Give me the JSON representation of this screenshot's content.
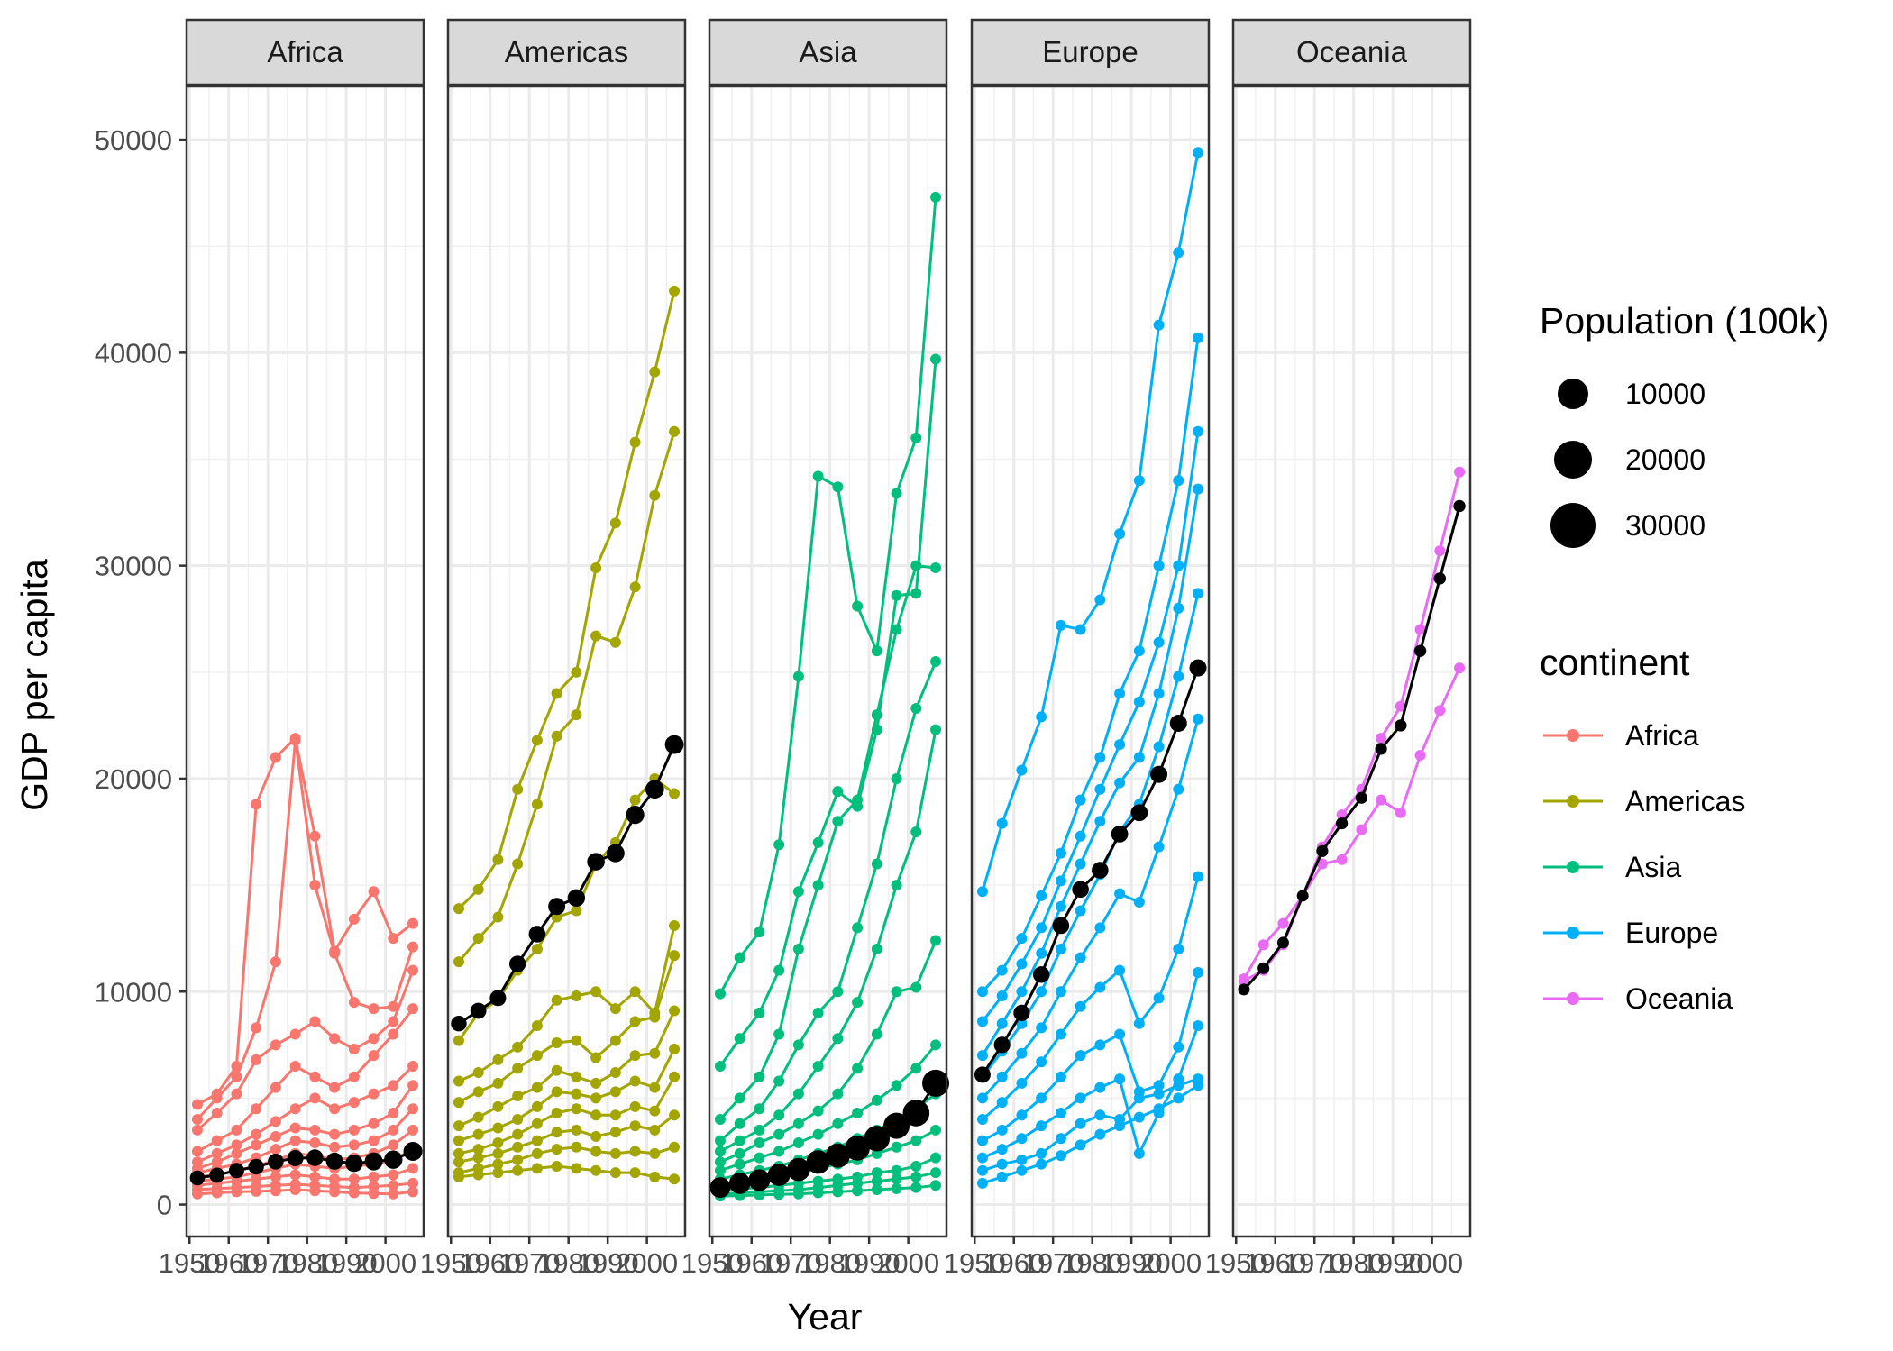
{
  "chart_data": {
    "type": "line",
    "title": "",
    "xlabel": "Year",
    "ylabel": "GDP per capita",
    "ylim": [
      -1500,
      52500
    ],
    "yticks": [
      0,
      10000,
      20000,
      30000,
      40000,
      50000
    ],
    "xlim": [
      1949.25,
      2009.75
    ],
    "xticks": [
      1950,
      1960,
      1970,
      1980,
      1990,
      2000
    ],
    "years": [
      1952,
      1957,
      1962,
      1967,
      1972,
      1977,
      1982,
      1987,
      1992,
      1997,
      2002,
      2007
    ],
    "grid": true,
    "facets": [
      "Africa",
      "Americas",
      "Asia",
      "Europe",
      "Oceania"
    ],
    "colors": {
      "Africa": "#F8766D",
      "Americas": "#A3A500",
      "Asia": "#00BF7D",
      "Europe": "#00B0F6",
      "Oceania": "#E76BF3",
      "mean": "#000000"
    },
    "legend": {
      "placement": "right",
      "size_title": "Population (100k)",
      "size_entries": [
        "10000",
        "20000",
        "30000"
      ],
      "color_title": "continent",
      "color_entries": [
        "Africa",
        "Americas",
        "Asia",
        "Europe",
        "Oceania"
      ]
    },
    "series": [
      {
        "continent": "Africa",
        "values": [
          4700,
          5200,
          6500,
          18800,
          21000,
          21900,
          17300,
          11900,
          13400,
          14700,
          12500,
          13200
        ]
      },
      {
        "continent": "Africa",
        "values": [
          4000,
          5000,
          6000,
          8300,
          11400,
          21800,
          15000,
          11800,
          9500,
          9200,
          9300,
          12100
        ]
      },
      {
        "continent": "Africa",
        "values": [
          3500,
          4300,
          5200,
          6800,
          7500,
          8000,
          8600,
          7800,
          7300,
          7800,
          8600,
          11000
        ]
      },
      {
        "continent": "Africa",
        "values": [
          2500,
          3000,
          3500,
          4500,
          5500,
          6500,
          6000,
          5500,
          6000,
          7000,
          8000,
          9200
        ]
      },
      {
        "continent": "Africa",
        "values": [
          2000,
          2400,
          2800,
          3300,
          3900,
          4500,
          5000,
          4500,
          4800,
          5200,
          5600,
          6500
        ]
      },
      {
        "continent": "Africa",
        "values": [
          1700,
          2000,
          2400,
          2800,
          3200,
          3600,
          3500,
          3300,
          3500,
          3800,
          4300,
          5600
        ]
      },
      {
        "continent": "Africa",
        "values": [
          1500,
          1700,
          1900,
          2200,
          2600,
          3000,
          2900,
          2700,
          2800,
          3000,
          3500,
          4500
        ]
      },
      {
        "continent": "Africa",
        "values": [
          1300,
          1400,
          1600,
          1800,
          2100,
          2400,
          2300,
          2100,
          2200,
          2400,
          2800,
          3500
        ]
      },
      {
        "continent": "Africa",
        "values": [
          1100,
          1200,
          1300,
          1500,
          1700,
          1900,
          1800,
          1700,
          1800,
          1900,
          2100,
          2600
        ]
      },
      {
        "continent": "Africa",
        "values": [
          900,
          1000,
          1100,
          1200,
          1300,
          1400,
          1300,
          1200,
          1200,
          1300,
          1400,
          1700
        ]
      },
      {
        "continent": "Africa",
        "values": [
          700,
          750,
          800,
          850,
          900,
          950,
          900,
          850,
          800,
          850,
          900,
          1000
        ]
      },
      {
        "continent": "Africa",
        "values": [
          500,
          550,
          600,
          620,
          650,
          700,
          650,
          600,
          550,
          520,
          500,
          600
        ]
      },
      {
        "continent": "Americas",
        "values": [
          13900,
          14800,
          16200,
          19500,
          21800,
          24000,
          25000,
          29900,
          32000,
          35800,
          39100,
          42900
        ]
      },
      {
        "continent": "Americas",
        "values": [
          11400,
          12500,
          13500,
          16000,
          18800,
          22000,
          23000,
          26700,
          26400,
          29000,
          33300,
          36300
        ]
      },
      {
        "continent": "Americas",
        "values": [
          7700,
          9000,
          9600,
          11000,
          12000,
          13500,
          13800,
          16000,
          17000,
          19000,
          20000,
          19300
        ]
      },
      {
        "continent": "Americas",
        "values": [
          5800,
          6200,
          6800,
          7400,
          8400,
          9600,
          9800,
          10000,
          9200,
          10000,
          9000,
          13100
        ]
      },
      {
        "continent": "Americas",
        "values": [
          4800,
          5300,
          5700,
          6400,
          7000,
          7600,
          7700,
          6900,
          7700,
          8600,
          8800,
          11700
        ]
      },
      {
        "continent": "Americas",
        "values": [
          3700,
          4100,
          4600,
          5100,
          5500,
          6300,
          6000,
          5700,
          6200,
          7000,
          7100,
          9100
        ]
      },
      {
        "continent": "Americas",
        "values": [
          3000,
          3300,
          3600,
          4000,
          4600,
          5300,
          5200,
          5000,
          5300,
          5800,
          5500,
          7300
        ]
      },
      {
        "continent": "Americas",
        "values": [
          2400,
          2600,
          2900,
          3300,
          3800,
          4300,
          4500,
          4200,
          4200,
          4600,
          4400,
          6000
        ]
      },
      {
        "continent": "Americas",
        "values": [
          2000,
          2200,
          2400,
          2700,
          3000,
          3400,
          3500,
          3200,
          3400,
          3700,
          3500,
          4200
        ]
      },
      {
        "continent": "Americas",
        "values": [
          1500,
          1700,
          1900,
          2100,
          2400,
          2600,
          2700,
          2500,
          2400,
          2500,
          2400,
          2700
        ]
      },
      {
        "continent": "Americas",
        "values": [
          1300,
          1400,
          1500,
          1600,
          1700,
          1800,
          1700,
          1600,
          1500,
          1500,
          1300,
          1200
        ]
      },
      {
        "continent": "Asia",
        "values": [
          9900,
          11600,
          12800,
          16900,
          24800,
          34200,
          33700,
          28100,
          26000,
          33400,
          36000,
          47300
        ]
      },
      {
        "continent": "Asia",
        "values": [
          6500,
          7800,
          9000,
          11000,
          14700,
          17000,
          19400,
          18700,
          22300,
          28600,
          28700,
          39700
        ]
      },
      {
        "continent": "Asia",
        "values": [
          4000,
          5000,
          6000,
          8000,
          12000,
          15000,
          18000,
          19000,
          23000,
          27000,
          30000,
          29900
        ]
      },
      {
        "continent": "Asia",
        "values": [
          3000,
          3800,
          4500,
          5800,
          7500,
          9000,
          10000,
          13000,
          16000,
          20000,
          23300,
          25500
        ]
      },
      {
        "continent": "Asia",
        "values": [
          2500,
          3000,
          3500,
          4200,
          5200,
          6500,
          7800,
          9500,
          12000,
          15000,
          17500,
          22300
        ]
      },
      {
        "continent": "Asia",
        "values": [
          2000,
          2400,
          2900,
          3300,
          3800,
          4400,
          5200,
          6400,
          8000,
          10000,
          10200,
          12400
        ]
      },
      {
        "continent": "Asia",
        "values": [
          1600,
          1900,
          2200,
          2500,
          2900,
          3300,
          3800,
          4300,
          4900,
          5600,
          6400,
          7500
        ]
      },
      {
        "continent": "Asia",
        "values": [
          1200,
          1400,
          1600,
          1800,
          2100,
          2400,
          2700,
          3100,
          3500,
          4000,
          4500,
          5200
        ]
      },
      {
        "continent": "Asia",
        "values": [
          900,
          1000,
          1100,
          1300,
          1500,
          1700,
          1900,
          2100,
          2400,
          2700,
          3000,
          3500
        ]
      },
      {
        "continent": "Asia",
        "values": [
          700,
          750,
          800,
          900,
          1000,
          1100,
          1200,
          1300,
          1500,
          1600,
          1800,
          2200
        ]
      },
      {
        "continent": "Asia",
        "values": [
          500,
          550,
          600,
          650,
          700,
          800,
          900,
          1000,
          1100,
          1200,
          1300,
          1500
        ]
      },
      {
        "continent": "Asia",
        "values": [
          400,
          420,
          450,
          480,
          500,
          550,
          600,
          650,
          700,
          750,
          800,
          900
        ]
      },
      {
        "continent": "Europe",
        "values": [
          14700,
          17900,
          20400,
          22900,
          27200,
          27000,
          28400,
          31500,
          34000,
          41300,
          44700,
          49400
        ]
      },
      {
        "continent": "Europe",
        "values": [
          10000,
          11000,
          12500,
          14500,
          16500,
          19000,
          21000,
          24000,
          26000,
          30000,
          34000,
          40700
        ]
      },
      {
        "continent": "Europe",
        "values": [
          8600,
          9800,
          11300,
          13000,
          15200,
          17300,
          19500,
          21600,
          23600,
          26400,
          30000,
          36300
        ]
      },
      {
        "continent": "Europe",
        "values": [
          7000,
          8500,
          10000,
          11800,
          14000,
          16000,
          18000,
          19800,
          21000,
          24000,
          28000,
          33600
        ]
      },
      {
        "continent": "Europe",
        "values": [
          6000,
          7200,
          8500,
          10000,
          12000,
          13800,
          15500,
          17500,
          18800,
          21500,
          24800,
          28700
        ]
      },
      {
        "continent": "Europe",
        "values": [
          5000,
          6000,
          7100,
          8300,
          10000,
          11600,
          13000,
          14600,
          14200,
          16800,
          19500,
          22800
        ]
      },
      {
        "continent": "Europe",
        "values": [
          4000,
          4800,
          5700,
          6700,
          8000,
          9300,
          10200,
          11000,
          8500,
          9700,
          12000,
          15400
        ]
      },
      {
        "continent": "Europe",
        "values": [
          3000,
          3500,
          4200,
          5000,
          6000,
          7000,
          7500,
          8000,
          5300,
          5600,
          7400,
          10900
        ]
      },
      {
        "continent": "Europe",
        "values": [
          2200,
          2600,
          3100,
          3700,
          4300,
          5000,
          5500,
          5900,
          2400,
          4300,
          5900,
          8400
        ]
      },
      {
        "continent": "Europe",
        "values": [
          1600,
          1900,
          2100,
          2400,
          3100,
          3800,
          4200,
          4000,
          5000,
          5200,
          5600,
          5900
        ]
      },
      {
        "continent": "Europe",
        "values": [
          1000,
          1300,
          1600,
          1900,
          2300,
          2800,
          3300,
          3700,
          4100,
          4500,
          5000,
          5600
        ]
      },
      {
        "continent": "Oceania",
        "values": [
          10500,
          11000,
          12200,
          14500,
          16800,
          18300,
          19500,
          21900,
          23400,
          27000,
          30700,
          34400
        ]
      },
      {
        "continent": "Oceania",
        "values": [
          10600,
          12200,
          13200,
          14500,
          16000,
          16200,
          17600,
          19000,
          18400,
          21100,
          23200,
          25200
        ]
      }
    ],
    "mean_series": [
      {
        "continent": "Africa",
        "values": [
          1250,
          1380,
          1600,
          1780,
          2020,
          2180,
          2200,
          2040,
          1940,
          2030,
          2110,
          2500
        ],
        "pop_100k": [
          2380,
          2660,
          2970,
          3350,
          3790,
          4340,
          4990,
          5700,
          6590,
          7440,
          8330,
          9300
        ]
      },
      {
        "continent": "Americas",
        "values": [
          8500,
          9100,
          9700,
          11300,
          12700,
          14000,
          14400,
          16100,
          16500,
          18300,
          19500,
          21600
        ],
        "pop_100k": [
          3450,
          3900,
          4330,
          4800,
          5250,
          5790,
          6320,
          6820,
          7390,
          7960,
          8490,
          8990
        ]
      },
      {
        "continent": "Asia",
        "values": [
          800,
          1000,
          1150,
          1400,
          1650,
          2000,
          2300,
          2650,
          3100,
          3700,
          4300,
          5700
        ],
        "pop_100k": [
          13950,
          15630,
          16970,
          19050,
          21500,
          23850,
          26100,
          28710,
          31340,
          33840,
          36010,
          38120
        ]
      },
      {
        "continent": "Europe",
        "values": [
          6100,
          7500,
          9000,
          10800,
          13100,
          14800,
          15700,
          17400,
          18400,
          20200,
          22600,
          25200
        ],
        "pop_100k": [
          4180,
          4380,
          4600,
          4810,
          4980,
          5110,
          5210,
          5300,
          5480,
          5590,
          5660,
          5700
        ]
      },
      {
        "continent": "Oceania",
        "values": [
          10100,
          11100,
          12300,
          14500,
          16600,
          17900,
          19100,
          21400,
          22500,
          26000,
          29400,
          32800
        ],
        "pop_100k": [
          100,
          110,
          120,
          140,
          150,
          160,
          170,
          180,
          200,
          210,
          220,
          250
        ]
      }
    ]
  }
}
